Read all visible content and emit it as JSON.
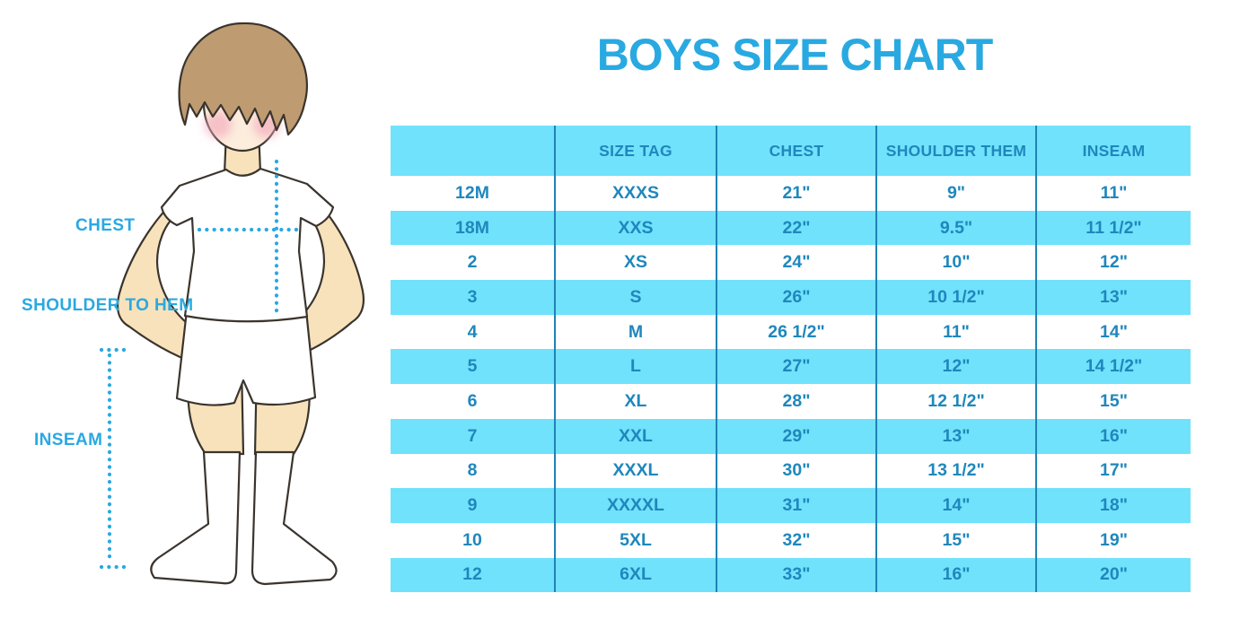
{
  "title": "BOYS SIZE CHART",
  "illustration": {
    "figure_name": "boy-in-white-tee-shorts-and-knee-socks",
    "labels": {
      "chest": "CHEST",
      "shoulder_to_hem": "SHOULDER TO HEM",
      "inseam": "INSEAM"
    }
  },
  "table": {
    "columns": [
      "",
      "SIZE TAG",
      "CHEST",
      "SHOULDER THEM",
      "INSEAM"
    ],
    "rows": [
      [
        "12M",
        "XXXS",
        "21\"",
        "9\"",
        "11\""
      ],
      [
        "18M",
        "XXS",
        "22\"",
        "9.5\"",
        "11 1/2\""
      ],
      [
        "2",
        "XS",
        "24\"",
        "10\"",
        "12\""
      ],
      [
        "3",
        "S",
        "26\"",
        "10 1/2\"",
        "13\""
      ],
      [
        "4",
        "M",
        "26 1/2\"",
        "11\"",
        "14\""
      ],
      [
        "5",
        "L",
        "27\"",
        "12\"",
        "14 1/2\""
      ],
      [
        "6",
        "XL",
        "28\"",
        "12 1/2\"",
        "15\""
      ],
      [
        "7",
        "XXL",
        "29\"",
        "13\"",
        "16\""
      ],
      [
        "8",
        "XXXL",
        "30\"",
        "13 1/2\"",
        "17\""
      ],
      [
        "9",
        "XXXXL",
        "31\"",
        "14\"",
        "18\""
      ],
      [
        "10",
        "5XL",
        "32\"",
        "15\"",
        "19\""
      ],
      [
        "12",
        "6XL",
        "33\"",
        "16\"",
        "20\""
      ]
    ]
  },
  "colors": {
    "accent_blue": "#29A9E1",
    "table_text": "#1F87BD",
    "stripe_cyan": "#70E2FB",
    "column_line": "#1F82B4"
  }
}
